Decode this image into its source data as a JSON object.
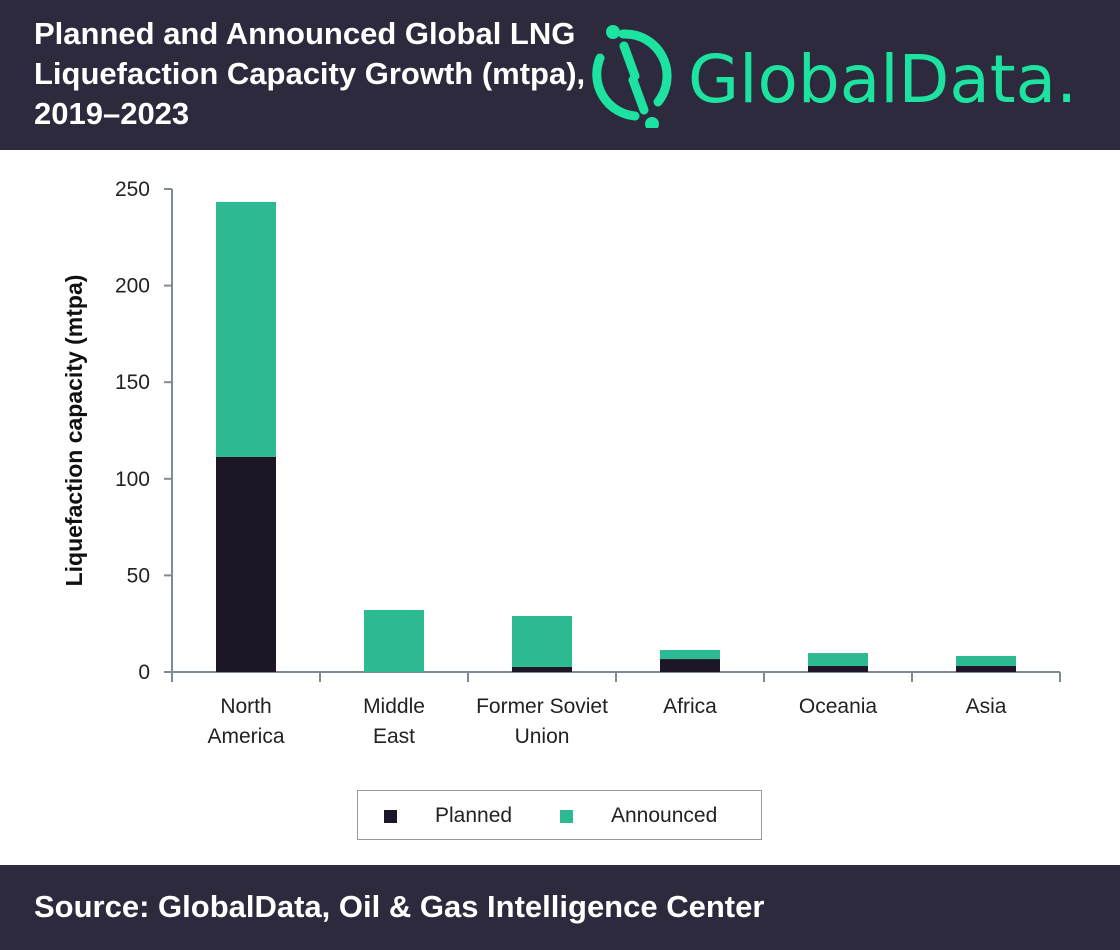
{
  "header": {
    "title": "Planned and Announced Global LNG Liquefaction Capacity Growth (mtpa), 2019–2023",
    "logo_text": "GlobalData."
  },
  "footer": {
    "source": "Source: GlobalData, Oil & Gas Intelligence Center"
  },
  "colors": {
    "planned": "#1c1626",
    "announced": "#2db992",
    "header_bg": "#2d2a3d",
    "logo": "#1de3a0"
  },
  "chart_data": {
    "type": "bar",
    "stacked": true,
    "title": "Planned and Announced Global LNG Liquefaction Capacity Growth (mtpa), 2019–2023",
    "xlabel": "",
    "ylabel": "Liquefaction capacity (mtpa)",
    "ylim": [
      0,
      250
    ],
    "yticks": [
      0,
      50,
      100,
      150,
      200,
      250
    ],
    "categories": [
      [
        "North",
        "America"
      ],
      [
        "Middle",
        "East"
      ],
      [
        "Former Soviet",
        "Union"
      ],
      [
        "Africa"
      ],
      [
        "Oceania"
      ],
      [
        "Asia"
      ]
    ],
    "series": [
      {
        "name": "Planned",
        "values": [
          111.3,
          0,
          2.6,
          6.7,
          3.1,
          3.1
        ]
      },
      {
        "name": "Announced",
        "values": [
          132,
          32.1,
          26.4,
          4.7,
          6.7,
          5.2
        ]
      }
    ],
    "legend": "bottom",
    "grid": false
  }
}
